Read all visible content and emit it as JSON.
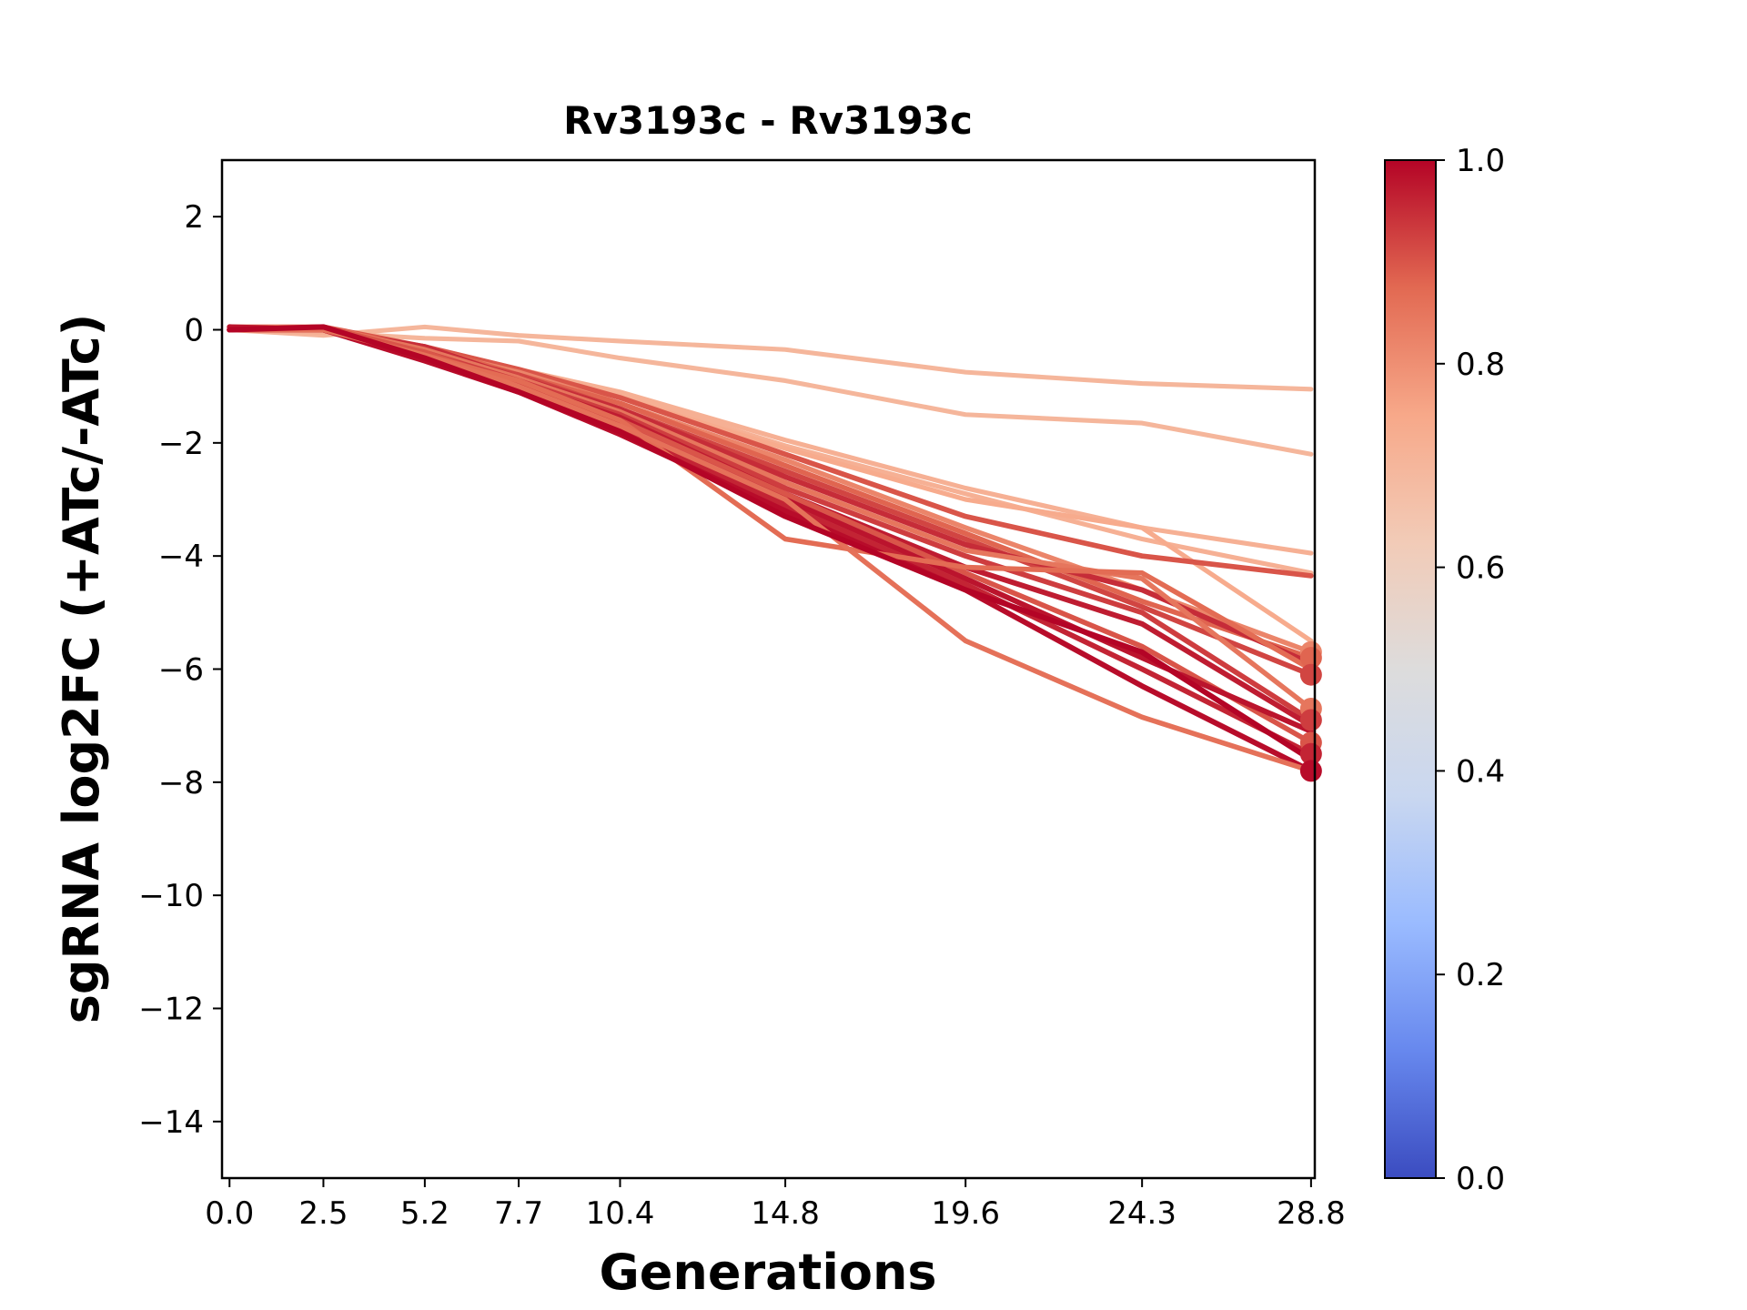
{
  "chart_data": {
    "type": "line",
    "title": "Rv3193c - Rv3193c",
    "xlabel": "Generations",
    "ylabel": "sgRNA log2FC (+ATc/-ATc)",
    "x": [
      0.0,
      2.5,
      5.2,
      7.7,
      10.4,
      14.8,
      19.6,
      24.3,
      28.8
    ],
    "xticks": [
      "0.0",
      "2.5",
      "5.2",
      "7.7",
      "10.4",
      "14.8",
      "19.6",
      "24.3",
      "28.8"
    ],
    "xlim": [
      -0.2,
      28.9
    ],
    "ylim": [
      -15,
      3
    ],
    "yticks": [
      2,
      0,
      -2,
      -4,
      -6,
      -8,
      -10,
      -12,
      -14
    ],
    "ytick_labels": [
      "2",
      "0",
      "−2",
      "−4",
      "−6",
      "−8",
      "−10",
      "−12",
      "−14"
    ],
    "colorbar": {
      "colormap": "coolwarm",
      "range": [
        0.0,
        1.0
      ],
      "ticks": [
        "0.0",
        "0.2",
        "0.4",
        "0.6",
        "0.8",
        "1.0"
      ],
      "stops": [
        "#3b4cc0",
        "#6788ee",
        "#9abbff",
        "#c9d7f0",
        "#dddcdc",
        "#f2cbb7",
        "#f7a889",
        "#e26952",
        "#b40426"
      ]
    },
    "series": [
      {
        "color_value": 0.7,
        "marker_last": false,
        "values": [
          0.0,
          -0.1,
          0.05,
          -0.1,
          -0.2,
          -0.35,
          -0.75,
          -0.95,
          -1.05
        ]
      },
      {
        "color_value": 0.7,
        "marker_last": false,
        "values": [
          0.0,
          -0.05,
          -0.15,
          -0.2,
          -0.5,
          -0.9,
          -1.5,
          -1.65,
          -2.2
        ]
      },
      {
        "color_value": 0.72,
        "marker_last": false,
        "values": [
          0.0,
          -0.05,
          -0.3,
          -0.7,
          -1.1,
          -1.95,
          -2.8,
          -3.5,
          -3.95
        ]
      },
      {
        "color_value": 0.72,
        "marker_last": false,
        "values": [
          0.0,
          0.0,
          -0.3,
          -0.7,
          -1.15,
          -2.05,
          -2.9,
          -3.7,
          -4.3
        ]
      },
      {
        "color_value": 0.74,
        "marker_last": false,
        "values": [
          0.05,
          0.0,
          -0.3,
          -0.75,
          -1.2,
          -2.1,
          -3.0,
          -3.5,
          -5.5
        ]
      },
      {
        "color_value": 0.9,
        "marker_last": false,
        "values": [
          0.0,
          0.05,
          -0.3,
          -0.7,
          -1.2,
          -2.2,
          -3.3,
          -4.0,
          -4.35
        ]
      },
      {
        "color_value": 0.82,
        "marker_last": true,
        "values": [
          0.05,
          0.0,
          -0.35,
          -0.75,
          -1.3,
          -2.3,
          -3.5,
          -4.6,
          -5.7
        ]
      },
      {
        "color_value": 0.88,
        "marker_last": true,
        "values": [
          0.0,
          0.0,
          -0.3,
          -0.8,
          -1.3,
          -2.4,
          -3.6,
          -4.8,
          -5.8
        ]
      },
      {
        "color_value": 0.92,
        "marker_last": true,
        "values": [
          0.0,
          0.05,
          -0.4,
          -0.8,
          -1.4,
          -2.5,
          -3.7,
          -4.9,
          -6.1
        ]
      },
      {
        "color_value": 0.95,
        "marker_last": false,
        "values": [
          0.0,
          0.0,
          -0.3,
          -0.85,
          -1.4,
          -2.6,
          -3.8,
          -4.6,
          -5.9
        ]
      },
      {
        "color_value": 0.85,
        "marker_last": true,
        "values": [
          0.05,
          0.05,
          -0.35,
          -0.85,
          -1.45,
          -2.7,
          -3.9,
          -4.4,
          -6.7
        ]
      },
      {
        "color_value": 0.93,
        "marker_last": true,
        "values": [
          0.0,
          0.0,
          -0.4,
          -0.9,
          -1.5,
          -2.8,
          -4.0,
          -5.0,
          -6.9
        ]
      },
      {
        "color_value": 0.97,
        "marker_last": false,
        "values": [
          0.0,
          0.0,
          -0.45,
          -0.95,
          -1.55,
          -2.9,
          -4.2,
          -5.2,
          -7.0
        ]
      },
      {
        "color_value": 0.9,
        "marker_last": true,
        "values": [
          0.0,
          0.05,
          -0.4,
          -0.95,
          -1.6,
          -2.9,
          -4.3,
          -5.6,
          -7.3
        ]
      },
      {
        "color_value": 0.98,
        "marker_last": false,
        "values": [
          0.05,
          0.0,
          -0.5,
          -1.0,
          -1.7,
          -3.0,
          -4.4,
          -5.8,
          -7.1
        ]
      },
      {
        "color_value": 0.96,
        "marker_last": true,
        "values": [
          0.0,
          0.0,
          -0.5,
          -1.05,
          -1.75,
          -3.1,
          -4.5,
          -6.0,
          -7.5
        ]
      },
      {
        "color_value": 0.99,
        "marker_last": true,
        "values": [
          0.0,
          0.0,
          -0.55,
          -1.1,
          -1.85,
          -3.2,
          -4.6,
          -6.3,
          -7.8
        ]
      },
      {
        "color_value": 0.87,
        "marker_last": false,
        "values": [
          0.0,
          0.0,
          -0.45,
          -0.9,
          -1.6,
          -3.7,
          -4.2,
          -4.3,
          -6.0
        ]
      },
      {
        "color_value": 0.86,
        "marker_last": false,
        "values": [
          0.0,
          0.0,
          -0.45,
          -1.0,
          -1.7,
          -3.0,
          -5.5,
          -6.85,
          -7.8
        ]
      },
      {
        "color_value": 1.0,
        "marker_last": false,
        "values": [
          0.0,
          0.05,
          -0.5,
          -1.1,
          -1.8,
          -3.3,
          -4.6,
          -5.7,
          -7.6
        ]
      }
    ]
  }
}
